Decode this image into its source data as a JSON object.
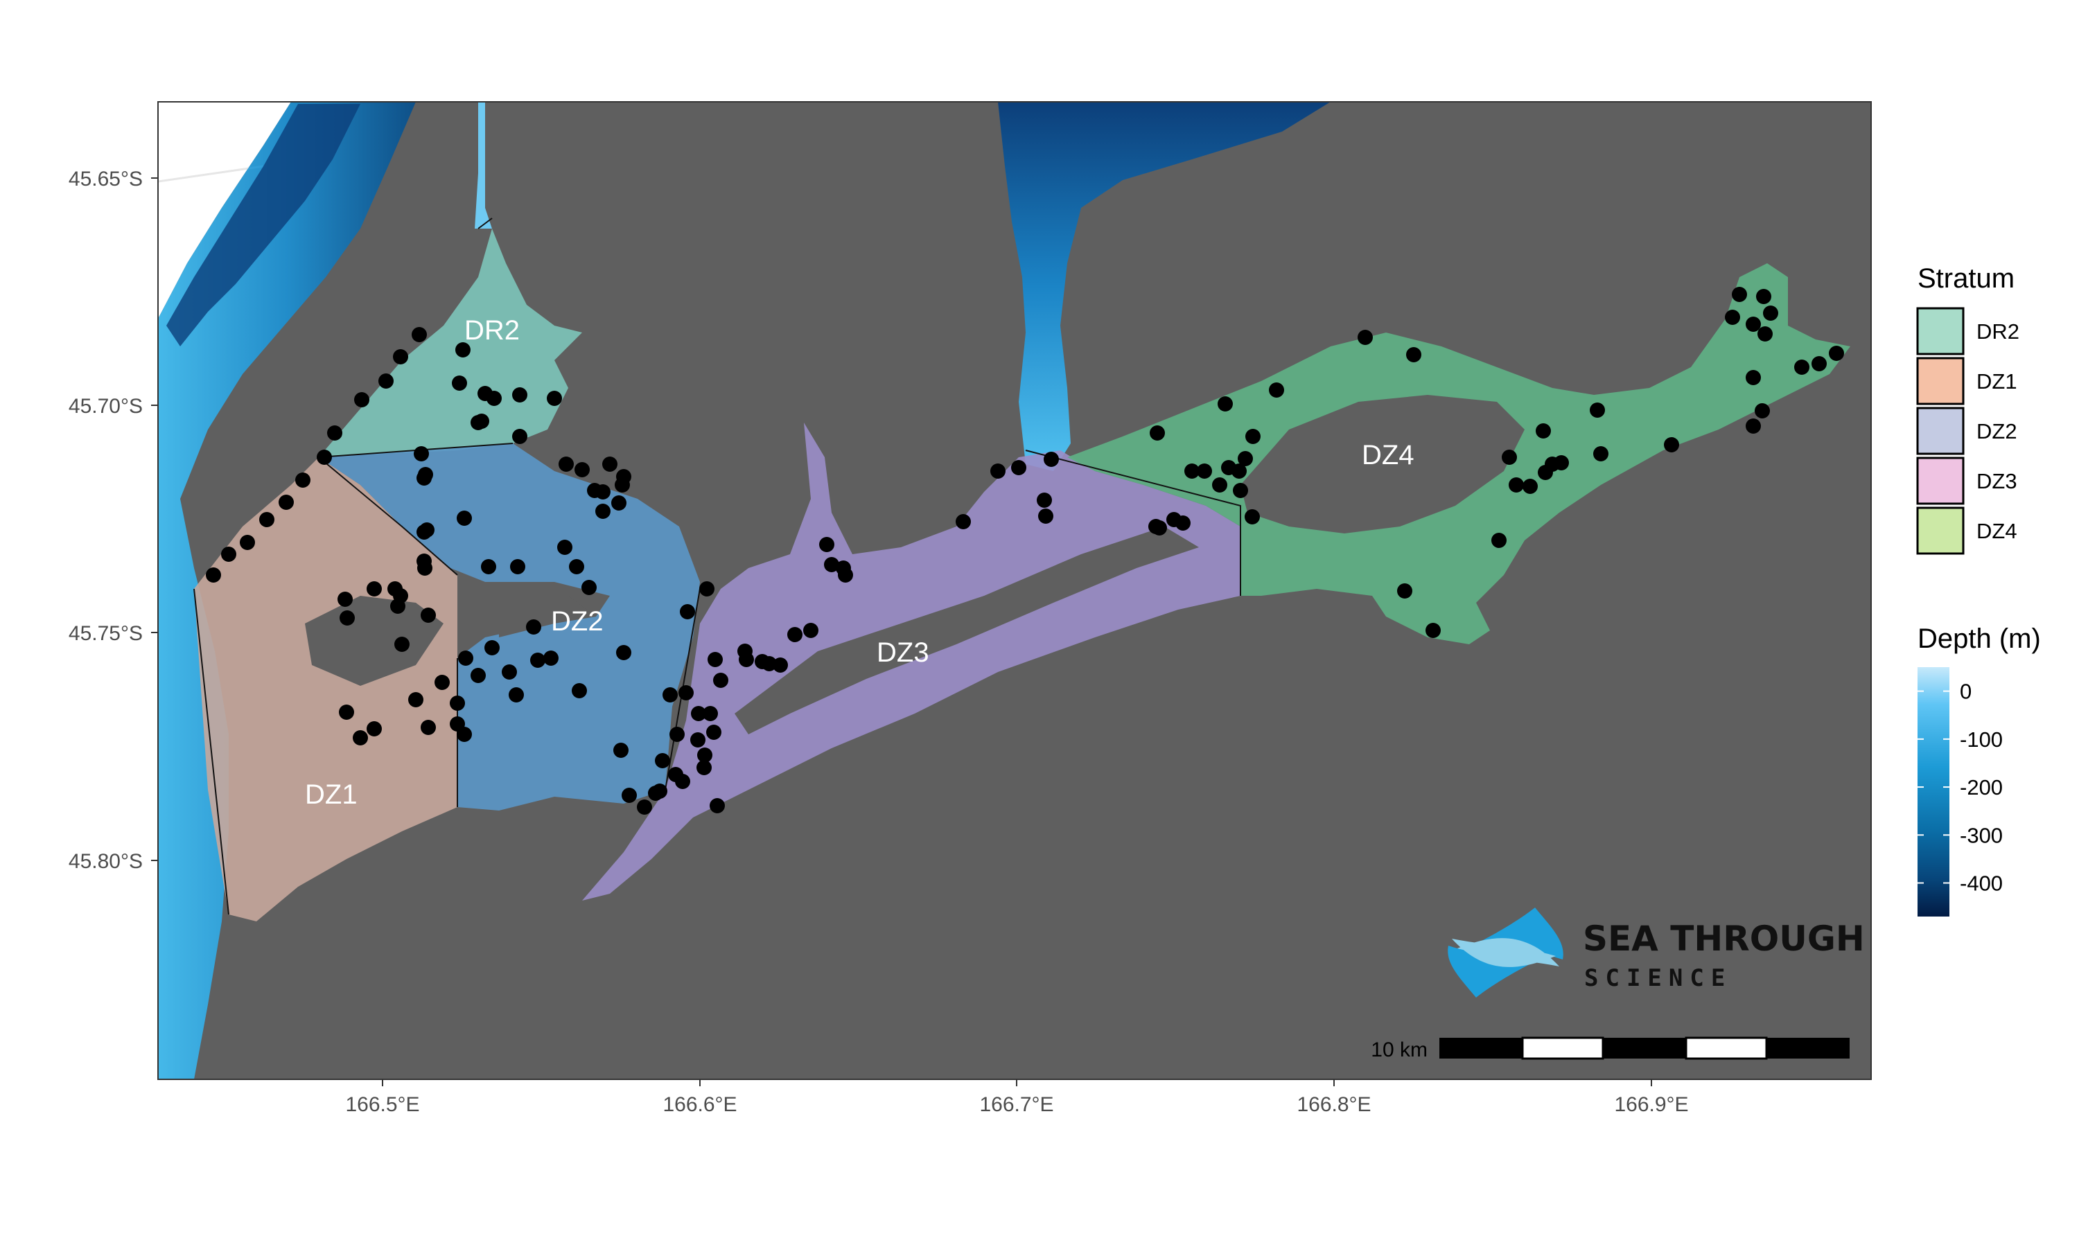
{
  "map": {
    "type": "bathymetry-stratum-map",
    "panel_background": "#5f5f5f",
    "axes": {
      "x_ticks": [
        "166.5°E",
        "166.6°E",
        "166.7°E",
        "166.8°E",
        "166.9°E"
      ],
      "y_ticks": [
        "45.65°S",
        "45.70°S",
        "45.75°S",
        "45.80°S"
      ]
    },
    "strata": [
      {
        "name": "DR2",
        "color": "#a8dcc9"
      },
      {
        "name": "DZ1",
        "color": "#f5c1a6"
      },
      {
        "name": "DZ2",
        "color": "#c4cbe3"
      },
      {
        "name": "DZ3",
        "color": "#efc3e2"
      },
      {
        "name": "DZ4",
        "color": "#cce9a6"
      }
    ],
    "stratum_labels": [
      "DR2",
      "DZ2",
      "DZ1",
      "DZ3",
      "DZ4"
    ],
    "legend_stratum": {
      "title": "Stratum",
      "entries": [
        "DR2",
        "DZ1",
        "DZ2",
        "DZ3",
        "DZ4"
      ]
    },
    "legend_depth": {
      "title": "Depth (m)",
      "ticks": [
        "0",
        "-100",
        "-200",
        "-300",
        "-400"
      ],
      "range": [
        50,
        -470
      ],
      "colors": [
        "#c6e9fb",
        "#5fc5f5",
        "#1d9bd6",
        "#0b6fa8",
        "#07457a",
        "#021b44"
      ]
    },
    "scale_bar": {
      "label": "10 km"
    },
    "logo": {
      "line1": "SEA THROUGH",
      "line2": "SCIENCE",
      "colors": [
        "#1ea0dc",
        "#8ed0ea"
      ]
    },
    "sampling_station_count": 140
  }
}
